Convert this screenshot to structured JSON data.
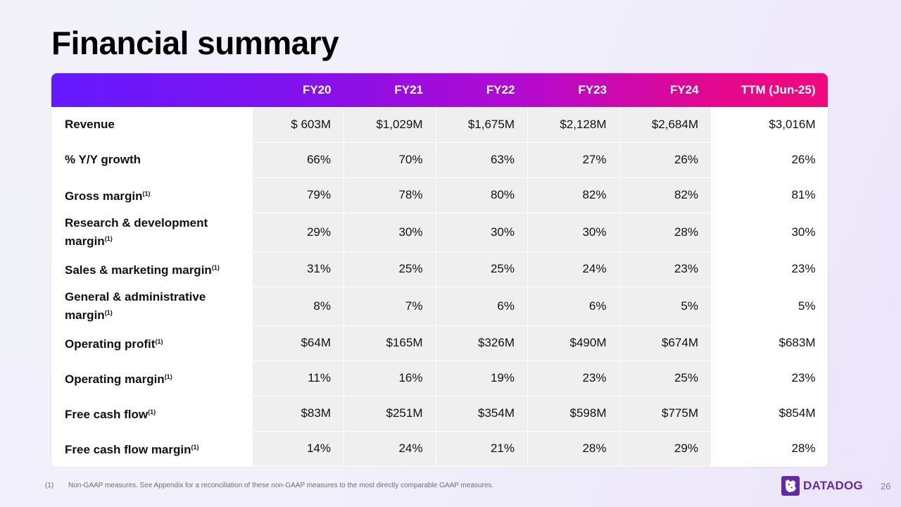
{
  "title": "Financial summary",
  "table": {
    "headers": [
      "",
      "FY20",
      "FY21",
      "FY22",
      "FY23",
      "FY24",
      "TTM (Jun-25)"
    ],
    "rows": [
      {
        "label": "Revenue",
        "note": "",
        "values": [
          "$ 603M",
          "$1,029M",
          "$1,675M",
          "$2,128M",
          "$2,684M",
          "$3,016M"
        ]
      },
      {
        "label": "% Y/Y growth",
        "note": "",
        "values": [
          "66%",
          "70%",
          "63%",
          "27%",
          "26%",
          "26%"
        ]
      },
      {
        "label": "Gross margin",
        "note": "(1)",
        "values": [
          "79%",
          "78%",
          "80%",
          "82%",
          "82%",
          "81%"
        ]
      },
      {
        "label": "Research & development margin",
        "note": "(1)",
        "values": [
          "29%",
          "30%",
          "30%",
          "30%",
          "28%",
          "30%"
        ]
      },
      {
        "label": "Sales & marketing margin",
        "note": "(1)",
        "values": [
          "31%",
          "25%",
          "25%",
          "24%",
          "23%",
          "23%"
        ]
      },
      {
        "label": "General & administrative margin",
        "note": "(1)",
        "values": [
          "8%",
          "7%",
          "6%",
          "6%",
          "5%",
          "5%"
        ]
      },
      {
        "label": "Operating profit",
        "note": "(1)",
        "values": [
          "$64M",
          "$165M",
          "$326M",
          "$490M",
          "$674M",
          "$683M"
        ]
      },
      {
        "label": "Operating margin",
        "note": "(1)",
        "values": [
          "11%",
          "16%",
          "19%",
          "23%",
          "25%",
          "23%"
        ]
      },
      {
        "label": "Free cash flow",
        "note": "(1)",
        "values": [
          "$83M",
          "$251M",
          "$354M",
          "$598M",
          "$775M",
          "$854M"
        ]
      },
      {
        "label": "Free cash flow margin",
        "note": "(1)",
        "values": [
          "14%",
          "24%",
          "21%",
          "28%",
          "29%",
          "28%"
        ]
      }
    ]
  },
  "footnote": {
    "marker": "(1)",
    "text": "Non-GAAP measures. See Appendix for a reconciliation of these non-GAAP measures to the most directly comparable GAAP measures."
  },
  "brand": {
    "name": "DATADOG",
    "logo_icon": "datadog-dog-icon",
    "color": "#632ca6"
  },
  "page_number": "26"
}
